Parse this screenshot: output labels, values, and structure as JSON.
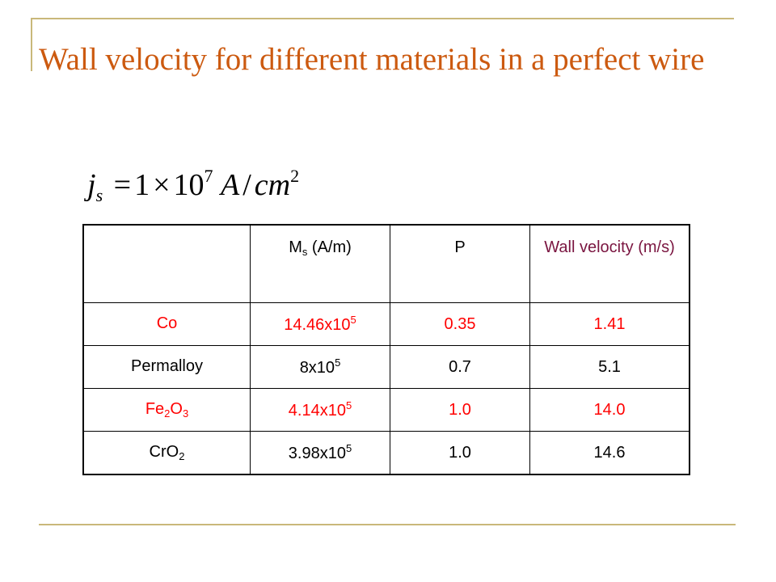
{
  "slide": {
    "title": "Wall velocity for different materials in a perfect wire"
  },
  "formula": {
    "lhs_var": "j",
    "lhs_sub": "s",
    "equals": "=",
    "coefficient": "1",
    "times": "×",
    "base": "10",
    "exponent": "7",
    "unit_numerator": "A",
    "slash": "/",
    "unit_denominator": "cm",
    "unit_exponent": "2"
  },
  "table": {
    "headers": {
      "ms_main": "M",
      "ms_sub": "s",
      "ms_unit": " (A/m)",
      "p": "P",
      "wall_velocity": "Wall velocity (m/s)"
    },
    "rows": [
      {
        "material_main": "Co",
        "material_sub1": "",
        "material_mid": "",
        "material_sub2": "",
        "ms_mantissa": "14.46x10",
        "ms_exp": "5",
        "p": "0.35",
        "velocity": "1.41",
        "highlight": true
      },
      {
        "material_main": "Permalloy",
        "material_sub1": "",
        "material_mid": "",
        "material_sub2": "",
        "ms_mantissa": "8x10",
        "ms_exp": "5",
        "p": "0.7",
        "velocity": "5.1",
        "highlight": false
      },
      {
        "material_main": "Fe",
        "material_sub1": "2",
        "material_mid": "O",
        "material_sub2": "3",
        "ms_mantissa": "4.14x10",
        "ms_exp": "5",
        "p": "1.0",
        "velocity": "14.0",
        "highlight": true
      },
      {
        "material_main": "CrO",
        "material_sub1": "2",
        "material_mid": "",
        "material_sub2": "",
        "ms_mantissa": "3.98x10",
        "ms_exp": "5",
        "p": "1.0",
        "velocity": "14.6",
        "highlight": false
      }
    ]
  },
  "colors": {
    "title": "#cc5a10",
    "highlight_text": "#ff0000",
    "header_wall_velocity": "#7a1540",
    "frame_lines": "#c9b87a"
  }
}
